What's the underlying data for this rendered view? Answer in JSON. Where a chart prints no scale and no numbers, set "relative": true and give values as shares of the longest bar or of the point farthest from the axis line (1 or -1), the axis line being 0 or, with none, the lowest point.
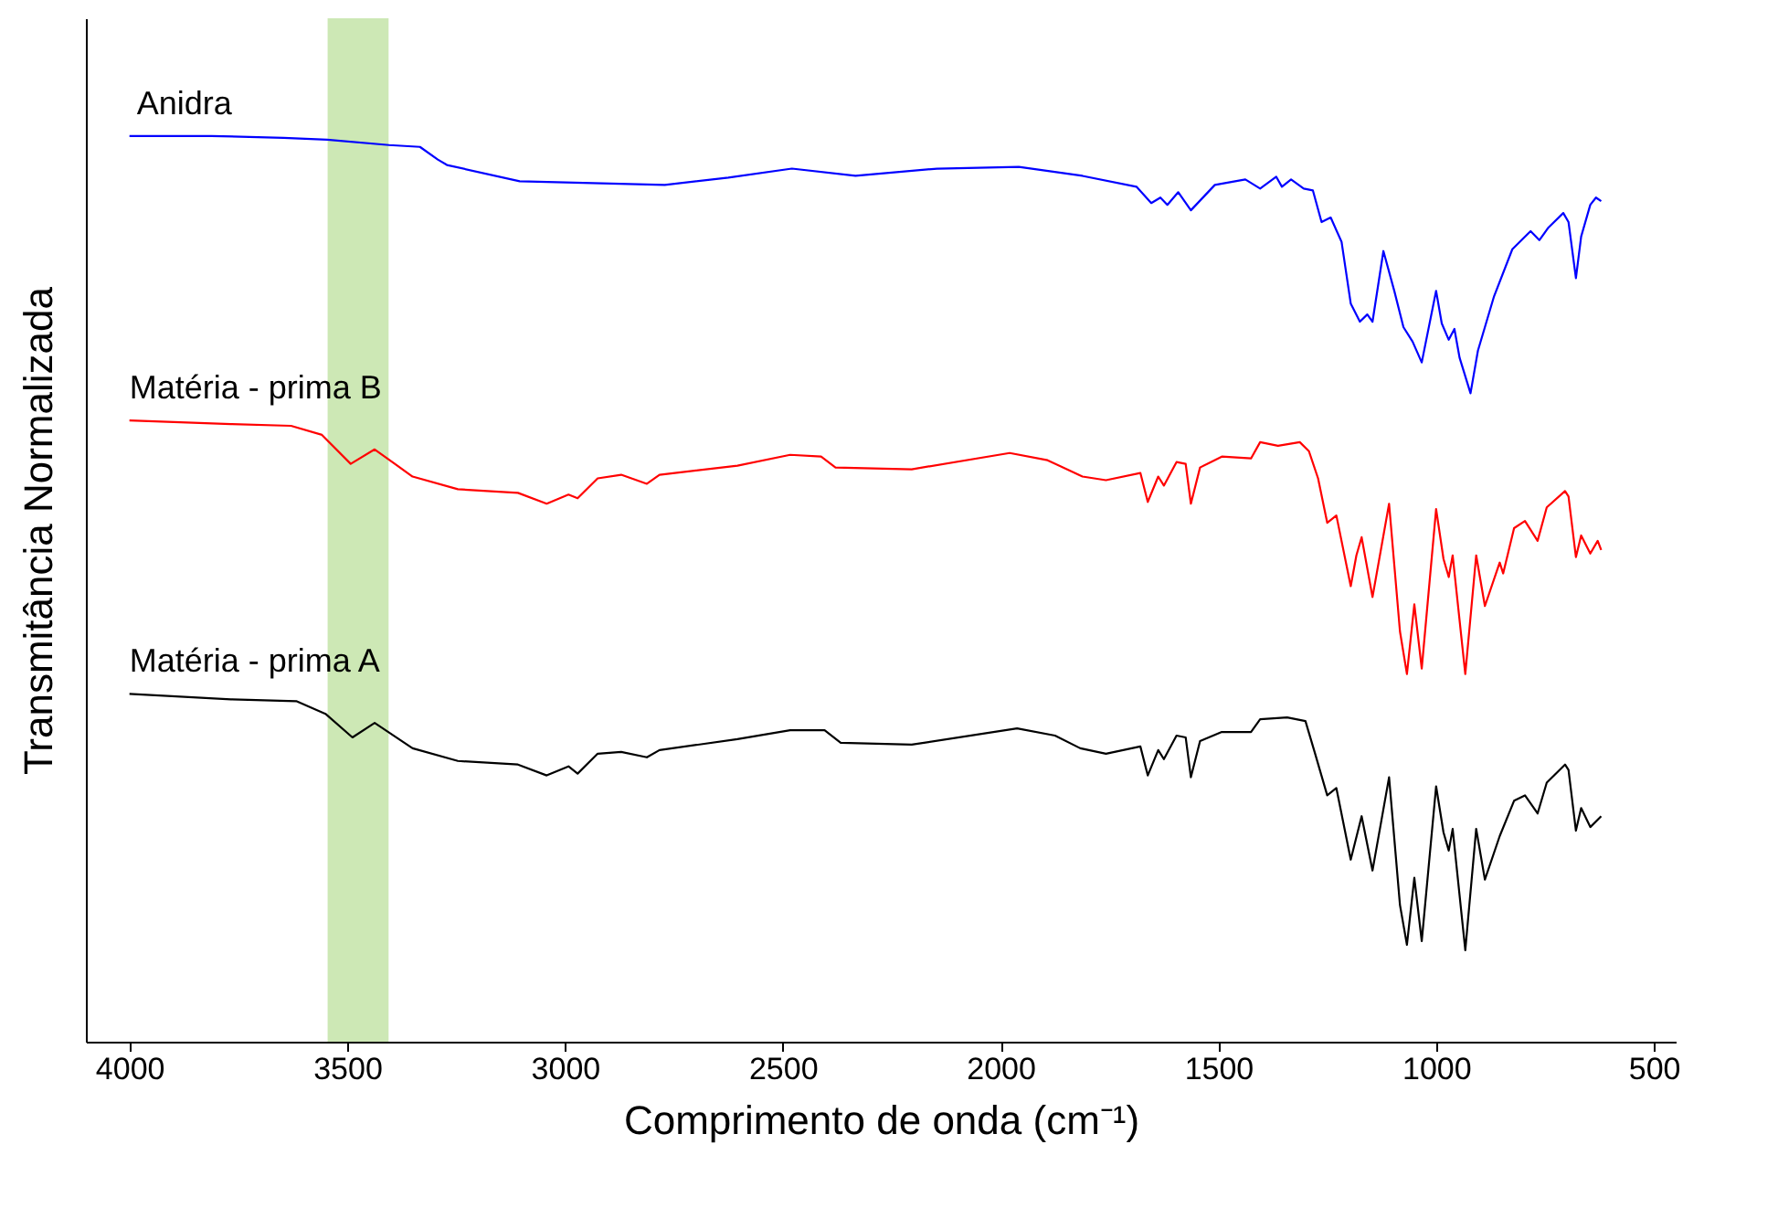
{
  "chart_data": {
    "type": "line",
    "relative": true,
    "xlabel": "Comprimento de onda (cm⁻¹)",
    "ylabel": "Transmitância Normalizada",
    "xlim": [
      4100,
      450
    ],
    "xticks": [
      4000,
      3500,
      3000,
      2500,
      2000,
      1500,
      1000,
      500
    ],
    "grid": false,
    "line_style": "solid",
    "marker": "none",
    "bands": [
      {
        "axis": "x",
        "from": 3545,
        "to": 3405,
        "color": "#cde8b5"
      }
    ],
    "series": [
      {
        "name": "Anidra",
        "color": "#0000ff",
        "x": [
          4000,
          3812,
          3646,
          3546,
          3404,
          3333,
          3292,
          3271,
          3104,
          2937,
          2771,
          2625,
          2479,
          2333,
          2146,
          1958,
          1812,
          1688,
          1654,
          1633,
          1617,
          1592,
          1563,
          1508,
          1438,
          1404,
          1367,
          1354,
          1333,
          1304,
          1283,
          1263,
          1242,
          1217,
          1196,
          1175,
          1158,
          1146,
          1121,
          1096,
          1075,
          1054,
          1033,
          1000,
          987,
          971,
          958,
          946,
          921,
          904,
          867,
          825,
          783,
          763,
          742,
          708,
          696,
          679,
          667,
          646,
          633,
          621
        ],
        "values": [
          1.0,
          1.0,
          0.998,
          0.996,
          0.99,
          0.988,
          0.974,
          0.968,
          0.95,
          0.948,
          0.946,
          0.954,
          0.964,
          0.956,
          0.964,
          0.966,
          0.956,
          0.944,
          0.926,
          0.932,
          0.924,
          0.938,
          0.918,
          0.946,
          0.952,
          0.942,
          0.955,
          0.944,
          0.952,
          0.942,
          0.94,
          0.905,
          0.91,
          0.883,
          0.815,
          0.795,
          0.803,
          0.795,
          0.873,
          0.829,
          0.789,
          0.773,
          0.75,
          0.829,
          0.793,
          0.775,
          0.787,
          0.755,
          0.716,
          0.763,
          0.823,
          0.875,
          0.895,
          0.885,
          0.899,
          0.915,
          0.905,
          0.843,
          0.889,
          0.924,
          0.932,
          0.928
        ]
      },
      {
        "name": "Matéria - prima B",
        "color": "#ff0000",
        "x": [
          4000,
          3767,
          3629,
          3558,
          3492,
          3437,
          3350,
          3246,
          3108,
          3042,
          2992,
          2971,
          2925,
          2871,
          2812,
          2783,
          2604,
          2483,
          2412,
          2379,
          2204,
          1979,
          1892,
          1812,
          1758,
          1679,
          1662,
          1638,
          1625,
          1596,
          1575,
          1563,
          1542,
          1492,
          1425,
          1404,
          1363,
          1313,
          1292,
          1271,
          1250,
          1229,
          1196,
          1183,
          1171,
          1146,
          1108,
          1083,
          1067,
          1050,
          1033,
          1000,
          983,
          971,
          962,
          933,
          908,
          888,
          854,
          846,
          821,
          796,
          767,
          746,
          704,
          696,
          679,
          667,
          646,
          629,
          621
        ],
        "values": [
          0.686,
          0.682,
          0.68,
          0.67,
          0.638,
          0.654,
          0.624,
          0.61,
          0.606,
          0.594,
          0.604,
          0.6,
          0.622,
          0.626,
          0.616,
          0.626,
          0.636,
          0.648,
          0.646,
          0.634,
          0.632,
          0.65,
          0.642,
          0.624,
          0.62,
          0.628,
          0.596,
          0.624,
          0.614,
          0.64,
          0.638,
          0.594,
          0.634,
          0.646,
          0.644,
          0.662,
          0.658,
          0.662,
          0.652,
          0.622,
          0.573,
          0.581,
          0.503,
          0.537,
          0.557,
          0.491,
          0.594,
          0.453,
          0.406,
          0.483,
          0.412,
          0.588,
          0.533,
          0.513,
          0.537,
          0.406,
          0.537,
          0.481,
          0.529,
          0.517,
          0.567,
          0.575,
          0.553,
          0.59,
          0.608,
          0.602,
          0.535,
          0.559,
          0.539,
          0.553,
          0.543
        ]
      },
      {
        "name": "Matéria - prima A",
        "color": "#000000",
        "x": [
          4000,
          3767,
          3617,
          3550,
          3488,
          3437,
          3350,
          3246,
          3108,
          3042,
          2992,
          2971,
          2925,
          2871,
          2812,
          2783,
          2604,
          2483,
          2404,
          2367,
          2204,
          1962,
          1875,
          1817,
          1758,
          1679,
          1662,
          1638,
          1625,
          1596,
          1575,
          1563,
          1542,
          1492,
          1425,
          1404,
          1342,
          1300,
          1279,
          1250,
          1229,
          1196,
          1171,
          1146,
          1108,
          1083,
          1067,
          1050,
          1033,
          1000,
          983,
          971,
          962,
          933,
          908,
          888,
          854,
          821,
          796,
          767,
          746,
          704,
          696,
          679,
          667,
          646,
          621
        ],
        "values": [
          0.384,
          0.378,
          0.376,
          0.362,
          0.336,
          0.352,
          0.324,
          0.31,
          0.306,
          0.294,
          0.304,
          0.296,
          0.318,
          0.32,
          0.314,
          0.322,
          0.334,
          0.344,
          0.344,
          0.33,
          0.328,
          0.346,
          0.338,
          0.324,
          0.318,
          0.326,
          0.294,
          0.322,
          0.312,
          0.338,
          0.336,
          0.292,
          0.332,
          0.342,
          0.342,
          0.356,
          0.358,
          0.354,
          0.32,
          0.272,
          0.28,
          0.201,
          0.249,
          0.189,
          0.292,
          0.151,
          0.107,
          0.181,
          0.111,
          0.282,
          0.231,
          0.211,
          0.235,
          0.101,
          0.235,
          0.179,
          0.227,
          0.266,
          0.272,
          0.252,
          0.286,
          0.306,
          0.3,
          0.233,
          0.258,
          0.237,
          0.249
        ]
      }
    ]
  }
}
